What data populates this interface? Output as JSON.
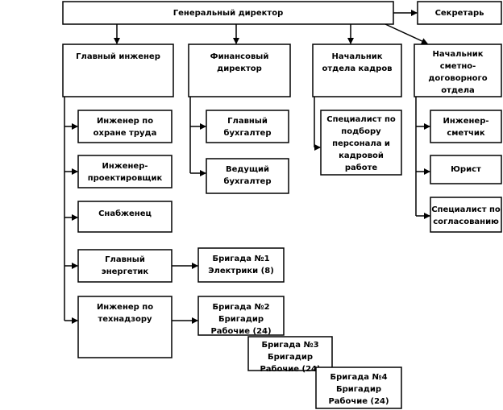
{
  "nodes": [
    {
      "label": [
        "Генеральный директор"
      ]
    },
    {
      "label": [
        "Секретарь"
      ]
    },
    {
      "label": [
        "Главный инженер"
      ]
    },
    {
      "label": [
        "Финансовый",
        "директор"
      ]
    },
    {
      "label": [
        "Начальник",
        "отдела кадров"
      ]
    },
    {
      "label": [
        "Начальник",
        "сметно-",
        "договорного",
        "отдела"
      ]
    },
    {
      "label": [
        "Инженер по",
        "охране труда"
      ]
    },
    {
      "label": [
        "Инженер-",
        "проектировщик"
      ]
    },
    {
      "label": [
        "Снабженец"
      ]
    },
    {
      "label": [
        "Главный",
        "энергетик"
      ]
    },
    {
      "label": [
        "Инженер по",
        "технадзору"
      ]
    },
    {
      "label": [
        "Главный",
        "бухгалтер"
      ]
    },
    {
      "label": [
        "Ведущий",
        "бухгалтер"
      ]
    },
    {
      "label": [
        "Специалист по",
        "подбору",
        "персонала и",
        "кадровой",
        "работе"
      ]
    },
    {
      "label": [
        "Инженер-",
        "сметчик"
      ]
    },
    {
      "label": [
        "Юрист"
      ]
    },
    {
      "label": [
        "Специалист по",
        "согласованию"
      ]
    },
    {
      "label": [
        "Бригада №1",
        "Электрики (8)"
      ]
    },
    {
      "label": [
        "Бригада №2",
        "Бригадир",
        "Рабочие (24)"
      ]
    },
    {
      "label": [
        "Бригада №3",
        "Бригадир",
        "Рабочие (24)"
      ]
    },
    {
      "label": [
        "Бригада №4",
        "Бригадир",
        "Рабочие (24)"
      ]
    }
  ]
}
